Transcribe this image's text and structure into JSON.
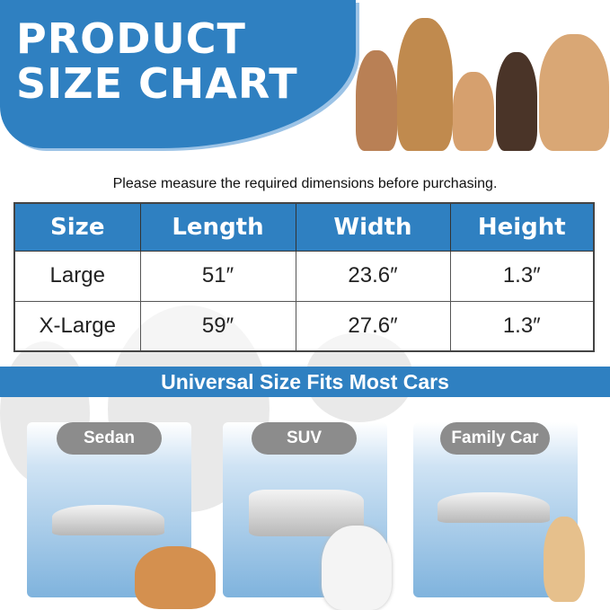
{
  "header": {
    "title_line1": "PRODUCT",
    "title_line2": "SIZE CHART"
  },
  "subtitle": "Please measure the required dimensions before purchasing.",
  "table": {
    "headers": [
      "Size",
      "Length",
      "Width",
      "Height"
    ],
    "rows": [
      [
        "Large",
        "51″",
        "23.6″",
        "1.3″"
      ],
      [
        "X-Large",
        "59″",
        "27.6″",
        "1.3″"
      ]
    ]
  },
  "banner": "Universal Size Fits Most Cars",
  "cars": [
    {
      "label": "Sedan"
    },
    {
      "label": "SUV"
    },
    {
      "label": "Family Car"
    }
  ],
  "colors": {
    "brand_blue": "#2f80c1",
    "pill_gray": "#8c8c8c"
  }
}
